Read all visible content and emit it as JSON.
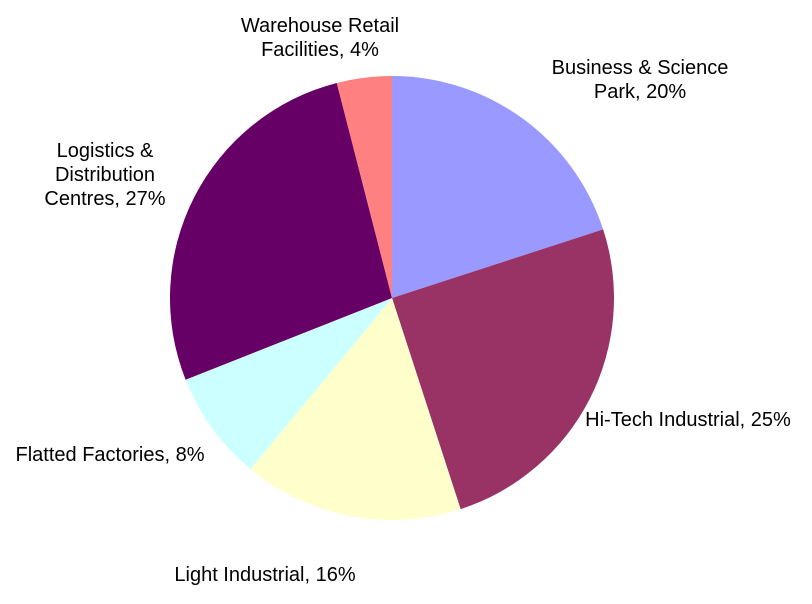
{
  "chart_data": {
    "type": "pie",
    "categories": [
      "Business & Science Park, 20%",
      "Hi-Tech Industrial, 25%",
      "Light Industrial, 16%",
      "Flatted Factories, 8%",
      "Logistics & Distribution Centres, 27%",
      "Warehouse Retail Facilities, 4%"
    ],
    "values": [
      20,
      25,
      16,
      8,
      27,
      4
    ],
    "colors": [
      "#9999ff",
      "#993366",
      "#ffffcc",
      "#ccffff",
      "#660066",
      "#ff8080"
    ]
  }
}
